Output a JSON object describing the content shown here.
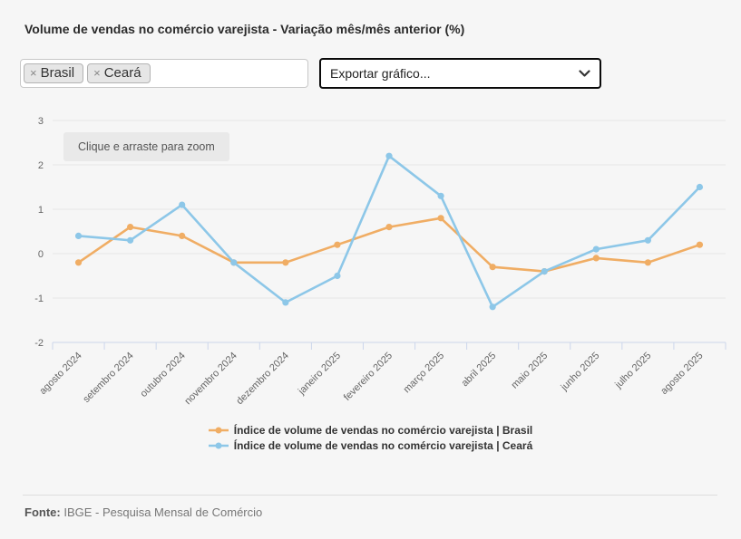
{
  "header": {
    "title": "Volume de vendas no comércio varejista - Variação mês/mês anterior (%)"
  },
  "filters": {
    "tags": [
      {
        "label": "Brasil",
        "remove_icon": "×"
      },
      {
        "label": "Ceará",
        "remove_icon": "×"
      }
    ]
  },
  "export_select": {
    "value": "Exportar gráfico..."
  },
  "chart": {
    "zoom_hint": "Clique e arraste para zoom"
  },
  "chart_data": {
    "type": "line",
    "title": "Volume de vendas no comércio varejista - Variação mês/mês anterior (%)",
    "categories": [
      "agosto 2024",
      "setembro 2024",
      "outubro 2024",
      "novembro 2024",
      "dezembro 2024",
      "janeiro 2025",
      "fevereiro 2025",
      "março 2025",
      "abril 2025",
      "maio 2025",
      "junho 2025",
      "julho 2025",
      "agosto 2025"
    ],
    "series": [
      {
        "name": "Índice de volume de vendas no comércio varejista | Brasil",
        "color": "#f0ad64",
        "values": [
          -0.2,
          0.6,
          0.4,
          -0.2,
          -0.2,
          0.2,
          0.6,
          0.8,
          -0.3,
          -0.4,
          -0.1,
          -0.2,
          0.2
        ]
      },
      {
        "name": "Índice de volume de vendas no comércio varejista | Ceará",
        "color": "#8dc7e8",
        "values": [
          0.4,
          0.3,
          1.1,
          -0.2,
          -1.1,
          -0.5,
          2.2,
          1.3,
          -1.2,
          -0.4,
          0.1,
          0.3,
          1.5
        ]
      }
    ],
    "xlabel": "",
    "ylabel": "",
    "ylim": [
      -2,
      3
    ],
    "yticks": [
      -2,
      -1,
      0,
      1,
      2,
      3
    ],
    "grid": true,
    "legend_position": "bottom",
    "colors": {
      "grid_line": "#e6e6e6",
      "axis_line": "#ccd6eb",
      "axis_label": "#666666"
    }
  },
  "footer": {
    "source_label": "Fonte:",
    "source_text": " IBGE - Pesquisa Mensal de Comércio"
  }
}
